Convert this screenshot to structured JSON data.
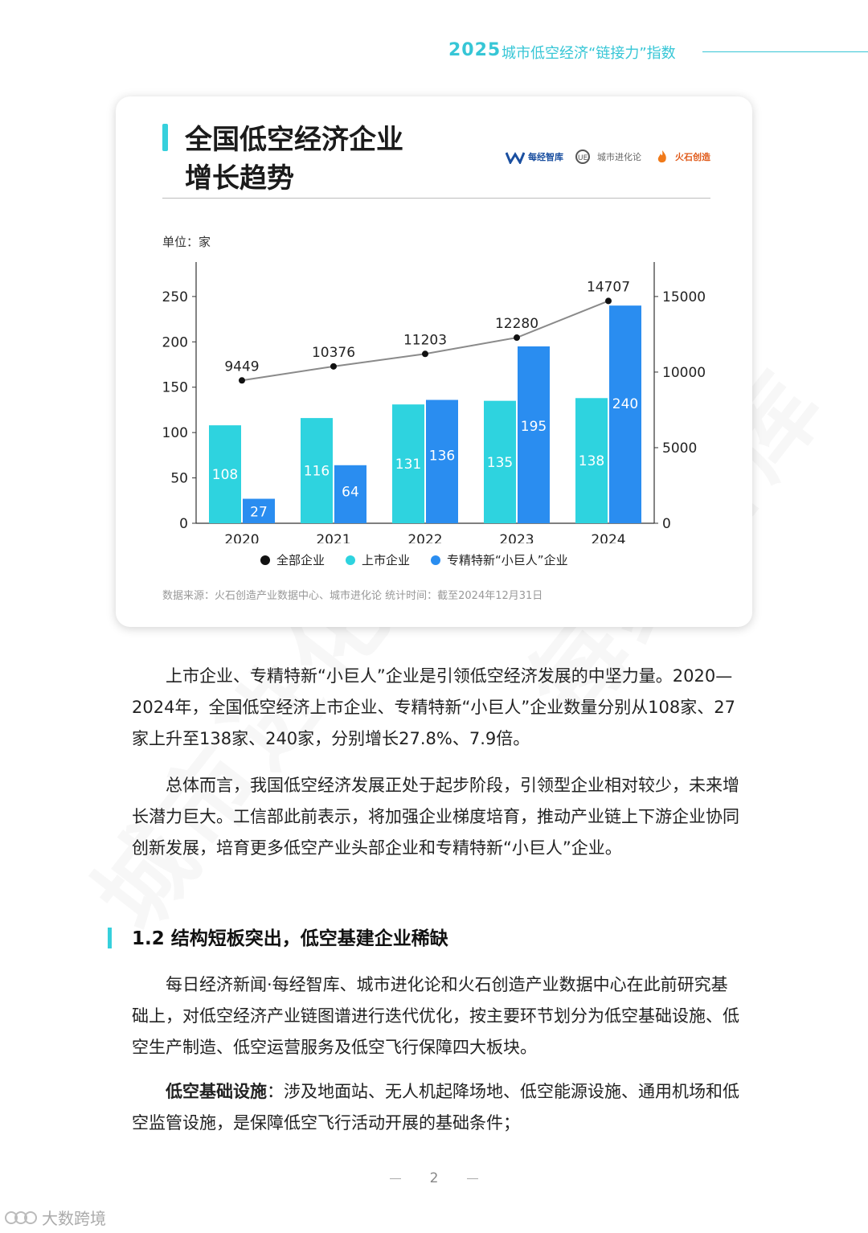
{
  "header": {
    "year": "2025",
    "title": "城市低空经济“链接力”指数"
  },
  "watermark": {
    "text1": "城市进化论",
    "text2": "每经智库"
  },
  "card": {
    "title_line1": "全国低空经济企业",
    "title_line2": "增长趋势",
    "logos": [
      "每经智库",
      "城市进化论",
      "火石创造"
    ],
    "unit": "单位：家",
    "source": "数据来源：火石创造产业数据中心、城市进化论 统计时间：截至2024年12月31日"
  },
  "chart_data": {
    "type": "bar",
    "categories": [
      "2020",
      "2021",
      "2022",
      "2023",
      "2024"
    ],
    "series": [
      {
        "name": "上市企业",
        "type": "bar",
        "axis": "left",
        "values": [
          108,
          116,
          131,
          135,
          138
        ],
        "color": "#2ed3df"
      },
      {
        "name": "专精特新“小巨人”企业",
        "type": "bar",
        "axis": "left",
        "values": [
          27,
          64,
          136,
          195,
          240
        ],
        "color": "#2a8df0"
      },
      {
        "name": "全部企业",
        "type": "line",
        "axis": "right",
        "values": [
          9449,
          10376,
          11203,
          12280,
          14707
        ],
        "color": "#111111"
      }
    ],
    "y_left": {
      "ticks": [
        0,
        50,
        100,
        150,
        200,
        250
      ],
      "range": [
        0,
        288
      ]
    },
    "y_right": {
      "ticks": [
        0,
        5000,
        10000,
        15000
      ],
      "range": [
        0,
        17280
      ]
    },
    "legend_position": "bottom"
  },
  "body": {
    "p1": "上市企业、专精特新“小巨人”企业是引领低空经济发展的中坚力量。2020—2024年，全国低空经济上市企业、专精特新“小巨人”企业数量分别从108家、27家上升至138家、240家，分别增长27.8%、7.9倍。",
    "p2": "总体而言，我国低空经济发展正处于起步阶段，引领型企业相对较少，未来增长潜力巨大。工信部此前表示，将加强企业梯度培育，推动产业链上下游企业协同创新发展，培育更多低空产业头部企业和专精特新“小巨人”企业。",
    "heading": "1.2 结构短板突出，低空基建企业稀缺",
    "p3": "每日经济新闻·每经智库、城市进化论和火石创造产业数据中心在此前研究基础上，对低空经济产业链图谱进行迭代优化，按主要环节划分为低空基础设施、低空生产制造、低空运营服务及低空飞行保障四大板块。",
    "p4_bold": "低空基础设施",
    "p4": "：涉及地面站、无人机起降场地、低空能源设施、通用机场和低空监管设施，是保障低空飞行活动开展的基础条件；"
  },
  "footer": {
    "page": "2",
    "brand": "大数跨境"
  }
}
